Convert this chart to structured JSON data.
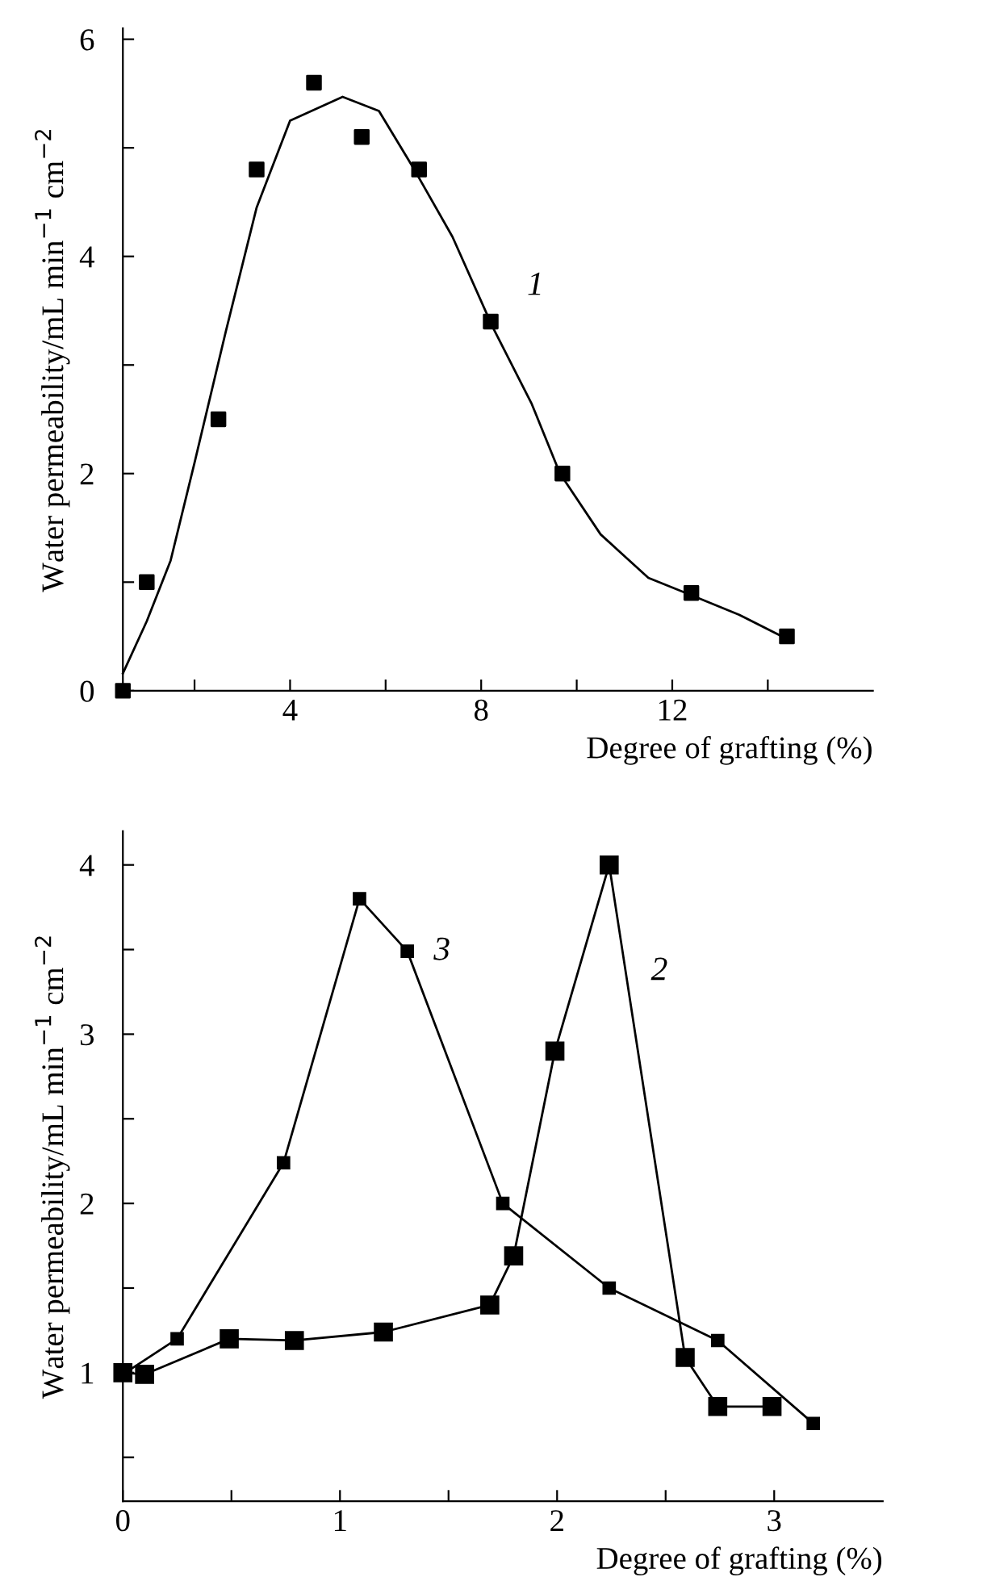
{
  "chart_data": [
    {
      "type": "scatter",
      "xlabel": "Degree of grafting (%)",
      "ylabel": "Water permeability/mL min$^{−1}$ cm$^{−2}$",
      "xlim": [
        0.5,
        16.2
      ],
      "ylim": [
        0,
        6.1
      ],
      "xticks": [
        {
          "value": 2,
          "label": null
        },
        4,
        {
          "value": 6,
          "label": null
        },
        8,
        {
          "value": 10,
          "label": null
        },
        12,
        {
          "value": 14,
          "label": null
        }
      ],
      "yticks": [
        0,
        {
          "value": 1,
          "label": null
        },
        2,
        {
          "value": 3,
          "label": null
        },
        4,
        {
          "value": 5,
          "label": null
        },
        6
      ],
      "marker": "square",
      "grid": false,
      "legend": false,
      "series": [
        {
          "type": "scatter",
          "color": "#000000",
          "x": [
            0.5,
            1.0,
            2.5,
            3.3,
            4.5,
            5.5,
            6.7,
            8.2,
            9.7,
            12.4,
            14.4
          ],
          "values": [
            0,
            1.0,
            2.5,
            4.8,
            5.6,
            5.1,
            4.8,
            3.4,
            2.0,
            0.9,
            0.5
          ]
        },
        {
          "type": "line",
          "color": "#000000",
          "marker": "none",
          "x": [
            0.5,
            1.0,
            1.5,
            2.0,
            2.65,
            3.3,
            4.0,
            5.1,
            5.86,
            6.6,
            7.4,
            8.24,
            9.06,
            9.65,
            10.5,
            11.5,
            12.4,
            13.4,
            14.3
          ],
          "values": [
            0.16,
            0.64,
            1.2,
            2.1,
            3.3,
            4.45,
            5.25,
            5.47,
            5.34,
            4.8,
            4.18,
            3.35,
            2.64,
            2.0,
            1.44,
            1.04,
            0.88,
            0.7,
            0.5
          ]
        }
      ],
      "annotations": [
        "1"
      ]
    },
    {
      "type": "line",
      "xlabel": "Degree of grafting (%)",
      "ylabel": "Water permeability/mL min$^{−1}$ cm$^{−2}$",
      "xlim": [
        0,
        3.5
      ],
      "ylim": [
        0.24,
        4.2
      ],
      "xticks": [
        0,
        {
          "value": 0.5,
          "label": null
        },
        1,
        {
          "value": 1.5,
          "label": null
        },
        2,
        {
          "value": 2.5,
          "label": null
        },
        3
      ],
      "yticks": [
        {
          "value": 0.5,
          "label": null
        },
        1,
        {
          "value": 1.5,
          "label": null
        },
        2,
        {
          "value": 2.5,
          "label": null
        },
        3,
        {
          "value": 3.5,
          "label": null
        },
        4
      ],
      "marker": "square",
      "line_style": "solid",
      "grid": false,
      "legend": false,
      "series": [
        {
          "color": "#000000",
          "x": [
            0,
            0.1,
            0.49,
            0.79,
            1.2,
            1.69,
            1.8,
            1.99,
            2.24,
            2.59,
            2.74,
            2.99
          ],
          "values": [
            1.0,
            0.99,
            1.2,
            1.19,
            1.24,
            1.4,
            1.69,
            2.9,
            4.0,
            1.09,
            0.8,
            0.8
          ]
        },
        {
          "color": "#000000",
          "x": [
            0,
            0.25,
            0.74,
            1.09,
            1.31,
            1.75,
            2.24,
            2.74,
            3.18
          ],
          "values": [
            0.99,
            1.2,
            2.24,
            3.8,
            3.49,
            2.0,
            1.5,
            1.19,
            0.7
          ]
        }
      ],
      "annotations": [
        "3",
        "2"
      ]
    }
  ]
}
